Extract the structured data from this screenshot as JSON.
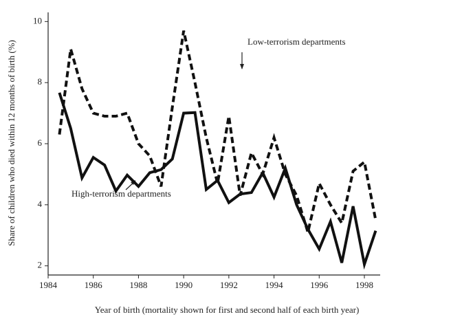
{
  "chart_data": {
    "type": "line",
    "xlabel": "Year of birth (mortality shown for first and second half of each birth year)",
    "ylabel": "Share of children who died within 12 months of birth (%)",
    "x": [
      1984.5,
      1985,
      1985.5,
      1986,
      1986.5,
      1987,
      1987.5,
      1988,
      1988.5,
      1989,
      1989.5,
      1990,
      1990.5,
      1991,
      1991.5,
      1992,
      1992.5,
      1993,
      1993.5,
      1994,
      1994.5,
      1995,
      1995.5,
      1996,
      1996.5,
      1997,
      1997.5,
      1998,
      1998.5
    ],
    "series": [
      {
        "name": "High-terrorism departments",
        "color": "#111111",
        "dash": false,
        "values": [
          7.67,
          6.5,
          4.88,
          5.55,
          5.3,
          4.45,
          4.97,
          4.6,
          5.05,
          5.15,
          5.5,
          7.0,
          7.02,
          4.5,
          4.8,
          4.07,
          4.35,
          4.4,
          5.05,
          4.25,
          5.2,
          4.0,
          3.2,
          2.55,
          3.45,
          2.1,
          3.95,
          2.05,
          3.15
        ]
      },
      {
        "name": "Low-terrorism departments",
        "color": "#111111",
        "dash": true,
        "values": [
          6.3,
          9.1,
          7.8,
          7.0,
          6.9,
          6.9,
          7.0,
          6.0,
          5.6,
          4.6,
          7.2,
          9.7,
          8.0,
          6.2,
          4.7,
          6.9,
          4.3,
          5.7,
          5.0,
          6.2,
          5.0,
          4.3,
          3.1,
          4.7,
          4.0,
          3.4,
          5.1,
          5.4,
          3.5
        ]
      }
    ],
    "xlim": [
      1984,
      1998.7
    ],
    "xticks": [
      1984,
      1986,
      1988,
      1990,
      1992,
      1994,
      1996,
      1998
    ],
    "ylim": [
      1.7,
      10.3
    ],
    "yticks": [
      2,
      4,
      6,
      8,
      10
    ],
    "legend": "annotations"
  }
}
